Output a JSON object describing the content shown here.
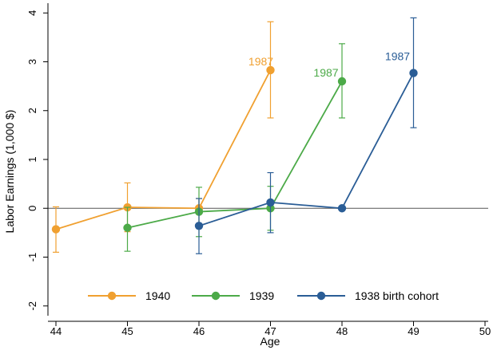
{
  "chart_data": {
    "type": "line",
    "xlabel": "Age",
    "ylabel": "Labor Earnings (1,000 $)",
    "xlim": [
      44,
      50
    ],
    "ylim": [
      -2.2,
      4.2
    ],
    "x_ticks": [
      "44",
      "45",
      "46",
      "47",
      "48",
      "49",
      "50"
    ],
    "y_ticks": [
      "4",
      "3",
      "2",
      "1",
      "0",
      "-1",
      "-2"
    ],
    "reference_line_y": 0,
    "grid": false,
    "legend_position": "bottom",
    "series": [
      {
        "name": "1940",
        "color": "#f0a030",
        "x": [
          44,
          45,
          46,
          47
        ],
        "y": [
          -0.43,
          0.02,
          0.0,
          2.83
        ],
        "ci_low": [
          -0.9,
          -0.48,
          -0.4,
          1.85
        ],
        "ci_high": [
          0.03,
          0.52,
          0.2,
          3.82
        ],
        "annotation": "1987"
      },
      {
        "name": "1939",
        "color": "#4caa48",
        "x": [
          45,
          46,
          47,
          48
        ],
        "y": [
          -0.4,
          -0.07,
          0.0,
          2.6
        ],
        "ci_low": [
          -0.88,
          -0.58,
          -0.45,
          1.85
        ],
        "ci_high": [
          0.02,
          0.43,
          0.45,
          3.37
        ],
        "annotation": "1987"
      },
      {
        "name": "1938 birth cohort",
        "color": "#2a5d96",
        "x": [
          46,
          47,
          48,
          49
        ],
        "y": [
          -0.36,
          0.12,
          0.0,
          2.77
        ],
        "ci_low": [
          -0.93,
          -0.5,
          -0.02,
          1.65
        ],
        "ci_high": [
          0.2,
          0.73,
          0.02,
          3.9
        ],
        "annotation": "1987"
      }
    ]
  }
}
